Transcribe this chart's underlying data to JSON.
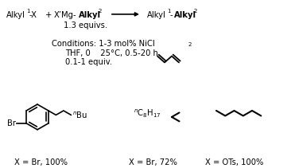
{
  "background": "#ffffff",
  "label1": "X = Br, 100%",
  "label2": "X = Br, 72%",
  "label3": "X = OTs, 100%"
}
